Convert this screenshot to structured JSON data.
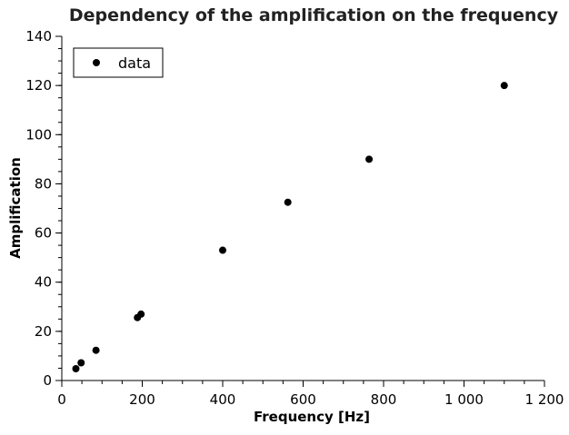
{
  "chart_data": {
    "type": "scatter",
    "title": "Dependency of the amplification on the frequency",
    "xlabel": "Frequency [Hz]",
    "ylabel": "Amplification",
    "xlim": [
      0,
      1200
    ],
    "ylim": [
      0,
      140
    ],
    "x_ticks": [
      {
        "value": 0,
        "label": "0"
      },
      {
        "value": 200,
        "label": "200"
      },
      {
        "value": 400,
        "label": "400"
      },
      {
        "value": 600,
        "label": "600"
      },
      {
        "value": 800,
        "label": "800"
      },
      {
        "value": 1000,
        "label": "1 000"
      },
      {
        "value": 1200,
        "label": "1 200"
      }
    ],
    "y_ticks": [
      {
        "value": 0,
        "label": "0"
      },
      {
        "value": 20,
        "label": "20"
      },
      {
        "value": 40,
        "label": "40"
      },
      {
        "value": 60,
        "label": "60"
      },
      {
        "value": 80,
        "label": "80"
      },
      {
        "value": 100,
        "label": "100"
      },
      {
        "value": 120,
        "label": "120"
      },
      {
        "value": 140,
        "label": "140"
      }
    ],
    "x_minor_step": 50,
    "y_minor_step": 5,
    "grid": false,
    "legend_position": "top-left",
    "series": [
      {
        "name": "data",
        "color": "#000000",
        "marker": "circle",
        "x": [
          35,
          48,
          85,
          188,
          197,
          400,
          562,
          764,
          1100
        ],
        "y": [
          4.8,
          7.2,
          12.3,
          25.6,
          27.0,
          53.0,
          72.5,
          90.0,
          120.0
        ]
      }
    ]
  }
}
